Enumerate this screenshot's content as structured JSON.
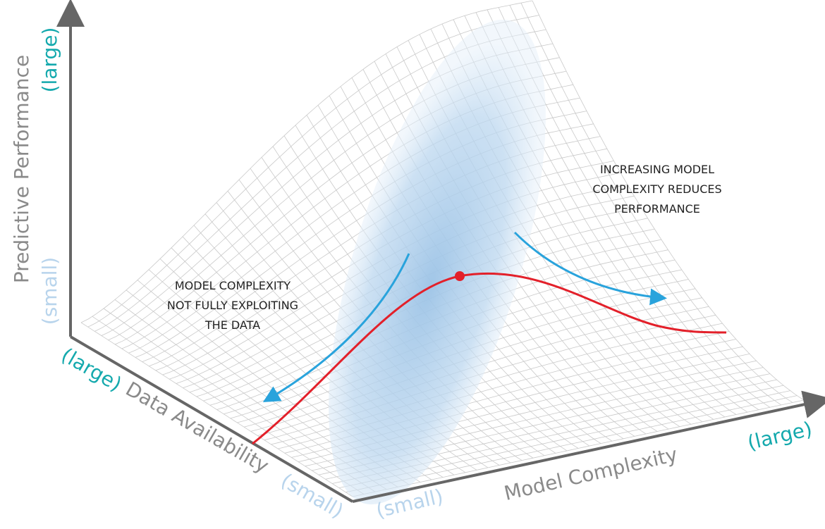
{
  "axes": {
    "performance": {
      "label": "Predictive Performance",
      "high": "(large)",
      "low": "(small)"
    },
    "data": {
      "label": "Data Availability",
      "high": "(large)",
      "low": "(small)"
    },
    "complexity": {
      "label": "Model Complexity",
      "low": "(small)",
      "high": "(large)"
    }
  },
  "annotations": [
    {
      "lines": [
        "MODEL COMPLEXITY",
        "NOT FULLY EXPLOITING",
        "THE DATA"
      ]
    },
    {
      "lines": [
        "INCREASING MODEL",
        "COMPLEXITY REDUCES",
        "PERFORMANCE"
      ]
    }
  ]
}
